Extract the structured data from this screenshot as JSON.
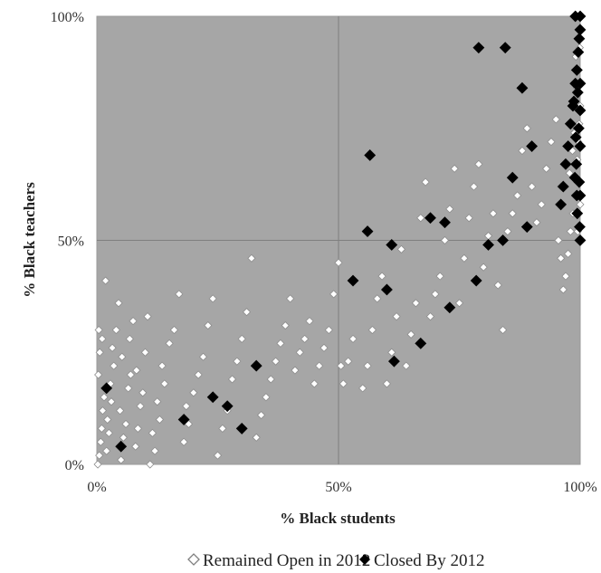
{
  "chart_data": {
    "type": "scatter",
    "title": "",
    "xlabel": "% Black students",
    "ylabel": "% Black teachers",
    "xlim": [
      0,
      100
    ],
    "ylim": [
      0,
      100
    ],
    "x_ticks": [
      {
        "value": 0,
        "label": "0%"
      },
      {
        "value": 50,
        "label": "50%"
      },
      {
        "value": 100,
        "label": "100%"
      }
    ],
    "y_ticks": [
      {
        "value": 0,
        "label": "0%"
      },
      {
        "value": 50,
        "label": "50%"
      },
      {
        "value": 100,
        "label": "100%"
      }
    ],
    "grid": true,
    "plot_background": "#a6a6a6",
    "legend_position": "bottom",
    "series": [
      {
        "name": "Remained Open in 2012",
        "marker": "open-diamond",
        "color": "#ffffff",
        "points": [
          [
            0.2,
            0
          ],
          [
            0.5,
            2
          ],
          [
            0.8,
            5
          ],
          [
            1,
            8
          ],
          [
            1.2,
            12
          ],
          [
            1.5,
            15
          ],
          [
            0.3,
            20
          ],
          [
            0.6,
            25
          ],
          [
            1.1,
            28
          ],
          [
            0.4,
            30
          ],
          [
            1.8,
            41
          ],
          [
            2,
            3
          ],
          [
            2.5,
            7
          ],
          [
            2.2,
            10
          ],
          [
            3,
            14
          ],
          [
            2.8,
            18
          ],
          [
            3.5,
            22
          ],
          [
            3.2,
            26
          ],
          [
            4,
            30
          ],
          [
            4.5,
            36
          ],
          [
            5,
            1
          ],
          [
            5.5,
            6
          ],
          [
            6,
            9
          ],
          [
            4.8,
            12
          ],
          [
            6.5,
            17
          ],
          [
            7,
            20
          ],
          [
            5.2,
            24
          ],
          [
            6.8,
            28
          ],
          [
            7.5,
            32
          ],
          [
            8,
            4
          ],
          [
            8.5,
            8
          ],
          [
            9,
            13
          ],
          [
            9.5,
            16
          ],
          [
            8.2,
            21
          ],
          [
            10,
            25
          ],
          [
            10.5,
            33
          ],
          [
            11,
            0
          ],
          [
            12,
            3
          ],
          [
            11.5,
            7
          ],
          [
            13,
            10
          ],
          [
            12.5,
            14
          ],
          [
            14,
            18
          ],
          [
            13.5,
            22
          ],
          [
            15,
            27
          ],
          [
            16,
            30
          ],
          [
            17,
            38
          ],
          [
            18,
            5
          ],
          [
            19,
            9
          ],
          [
            18.5,
            13
          ],
          [
            20,
            16
          ],
          [
            21,
            20
          ],
          [
            22,
            24
          ],
          [
            23,
            31
          ],
          [
            24,
            37
          ],
          [
            25,
            2
          ],
          [
            26,
            8
          ],
          [
            27,
            12
          ],
          [
            28,
            19
          ],
          [
            29,
            23
          ],
          [
            30,
            28
          ],
          [
            31,
            34
          ],
          [
            32,
            46
          ],
          [
            33,
            6
          ],
          [
            34,
            11
          ],
          [
            35,
            15
          ],
          [
            36,
            19
          ],
          [
            37,
            23
          ],
          [
            38,
            27
          ],
          [
            39,
            31
          ],
          [
            40,
            37
          ],
          [
            41,
            21
          ],
          [
            42,
            25
          ],
          [
            43,
            28
          ],
          [
            44,
            32
          ],
          [
            45,
            18
          ],
          [
            46,
            22
          ],
          [
            47,
            26
          ],
          [
            48,
            30
          ],
          [
            49,
            38
          ],
          [
            50,
            45
          ],
          [
            50.5,
            22
          ],
          [
            51,
            18
          ],
          [
            52,
            23
          ],
          [
            53,
            28
          ],
          [
            55,
            17
          ],
          [
            56,
            22
          ],
          [
            57,
            30
          ],
          [
            58,
            37
          ],
          [
            59,
            42
          ],
          [
            60,
            18
          ],
          [
            61,
            25
          ],
          [
            62,
            33
          ],
          [
            63,
            48
          ],
          [
            64,
            22
          ],
          [
            65,
            29
          ],
          [
            66,
            36
          ],
          [
            67,
            55
          ],
          [
            68,
            63
          ],
          [
            69,
            33
          ],
          [
            70,
            38
          ],
          [
            71,
            42
          ],
          [
            72,
            50
          ],
          [
            73,
            57
          ],
          [
            74,
            66
          ],
          [
            75,
            36
          ],
          [
            76,
            46
          ],
          [
            77,
            55
          ],
          [
            78,
            62
          ],
          [
            79,
            67
          ],
          [
            80,
            44
          ],
          [
            81,
            51
          ],
          [
            82,
            56
          ],
          [
            83,
            40
          ],
          [
            84,
            30
          ],
          [
            85,
            52
          ],
          [
            86,
            56
          ],
          [
            87,
            60
          ],
          [
            88,
            70
          ],
          [
            89,
            75
          ],
          [
            90,
            62
          ],
          [
            91,
            54
          ],
          [
            92,
            58
          ],
          [
            93,
            66
          ],
          [
            94,
            72
          ],
          [
            95,
            77
          ],
          [
            96,
            62
          ],
          [
            96.5,
            39
          ],
          [
            97,
            42
          ],
          [
            97.5,
            47
          ],
          [
            98,
            52
          ],
          [
            98.5,
            56
          ],
          [
            99,
            60
          ],
          [
            99.2,
            64
          ],
          [
            99.4,
            68
          ],
          [
            99.6,
            72
          ],
          [
            99.8,
            76
          ],
          [
            100,
            80
          ],
          [
            99.3,
            84
          ],
          [
            99.7,
            88
          ],
          [
            99.1,
            91
          ],
          [
            99.9,
            93
          ],
          [
            98.8,
            74
          ],
          [
            98.4,
            70
          ],
          [
            97.8,
            65
          ],
          [
            100,
            58
          ],
          [
            99.5,
            52
          ],
          [
            96,
            46
          ],
          [
            95.5,
            50
          ]
        ]
      },
      {
        "name": "Closed By 2012",
        "marker": "filled-diamond",
        "color": "#000000",
        "points": [
          [
            2,
            17
          ],
          [
            5,
            4
          ],
          [
            18,
            10
          ],
          [
            24,
            15
          ],
          [
            27,
            13
          ],
          [
            30,
            8
          ],
          [
            33,
            22
          ],
          [
            53,
            41
          ],
          [
            56,
            52
          ],
          [
            56.5,
            69
          ],
          [
            60,
            39
          ],
          [
            61,
            49
          ],
          [
            61.5,
            23
          ],
          [
            67,
            27
          ],
          [
            69,
            55
          ],
          [
            72,
            54
          ],
          [
            73,
            35
          ],
          [
            78.5,
            41
          ],
          [
            79,
            93
          ],
          [
            81,
            49
          ],
          [
            84,
            50
          ],
          [
            84.5,
            93
          ],
          [
            86,
            64
          ],
          [
            88,
            84
          ],
          [
            89,
            53
          ],
          [
            90,
            71
          ],
          [
            96,
            58
          ],
          [
            96.5,
            62
          ],
          [
            97,
            67
          ],
          [
            97.5,
            71
          ],
          [
            98,
            76
          ],
          [
            98.5,
            80
          ],
          [
            99,
            85
          ],
          [
            99.3,
            88
          ],
          [
            99.6,
            92
          ],
          [
            99.8,
            95
          ],
          [
            100,
            100
          ],
          [
            99,
            100
          ],
          [
            100,
            97
          ],
          [
            99.5,
            83
          ],
          [
            100,
            79
          ],
          [
            99.7,
            75
          ],
          [
            100,
            71
          ],
          [
            99.2,
            67
          ],
          [
            99.8,
            63
          ],
          [
            100,
            60
          ],
          [
            99.4,
            56
          ],
          [
            99.9,
            53
          ],
          [
            100,
            50
          ],
          [
            99.1,
            73
          ],
          [
            98.7,
            81
          ],
          [
            100,
            85
          ],
          [
            99.3,
            60
          ],
          [
            98.9,
            64
          ]
        ]
      }
    ]
  }
}
